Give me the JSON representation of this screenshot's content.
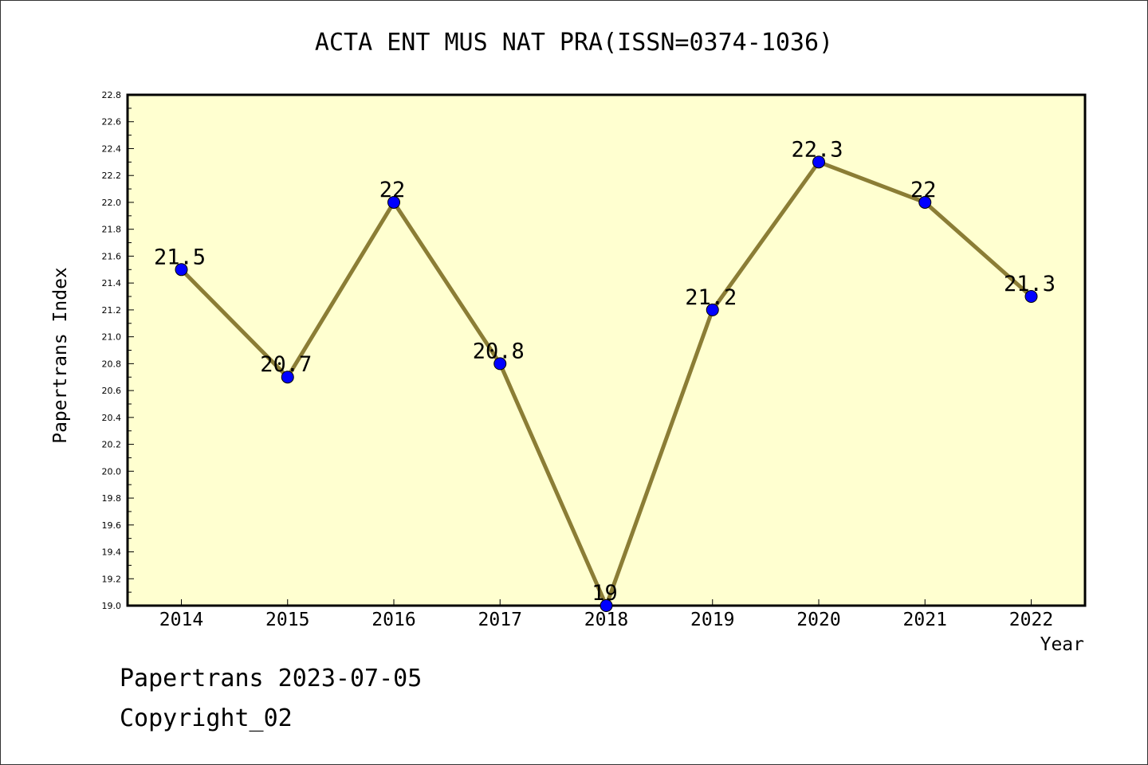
{
  "chart_data": {
    "type": "line",
    "title": "ACTA ENT MUS NAT PRA(ISSN=0374-1036)",
    "xlabel": "Year",
    "ylabel": "Papertrans Index",
    "categories": [
      "2014",
      "2015",
      "2016",
      "2017",
      "2018",
      "2019",
      "2020",
      "2021",
      "2022"
    ],
    "series": [
      {
        "values": [
          21.5,
          20.7,
          22,
          20.8,
          19,
          21.2,
          22.3,
          22,
          21.3
        ],
        "labels": [
          "21.5",
          "20.7",
          "22",
          "20.8",
          "19",
          "21.2",
          "22.3",
          "22",
          "21.3"
        ]
      }
    ],
    "ylim": [
      19.0,
      22.8
    ],
    "yticks": [
      "19.0",
      "19.2",
      "19.4",
      "19.6",
      "19.8",
      "20.0",
      "20.2",
      "20.4",
      "20.6",
      "20.8",
      "21.0",
      "21.2",
      "21.4",
      "21.6",
      "21.8",
      "22.0",
      "22.2",
      "22.4",
      "22.6",
      "22.8"
    ],
    "grid": false,
    "colors": {
      "plot_background": "#ffffd0",
      "line": "#8b7d35",
      "marker": "#0000ff"
    }
  },
  "footer": {
    "line1": "Papertrans 2023-07-05",
    "line2": "Copyright_02"
  }
}
